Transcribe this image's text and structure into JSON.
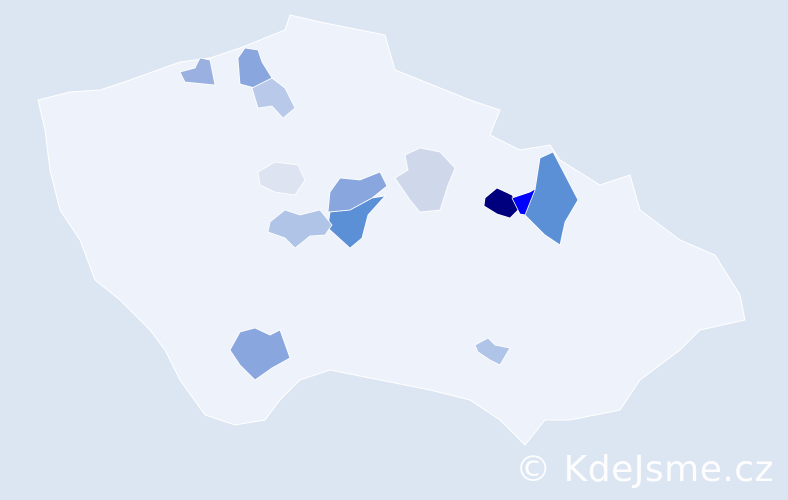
{
  "map": {
    "country_fill": "#eef2fa",
    "border_color": "#ffffff",
    "background": "#dce5f2",
    "highlighted_districts": [
      {
        "level": "highest",
        "color": "#00007f"
      },
      {
        "level": "very-high",
        "color": "#0000ff"
      },
      {
        "level": "high",
        "color": "#5b8fd6"
      },
      {
        "level": "high",
        "color": "#5b8fd6"
      },
      {
        "level": "medium",
        "color": "#8aa6de"
      },
      {
        "level": "medium",
        "color": "#8aa6de"
      },
      {
        "level": "medium",
        "color": "#8aa6de"
      },
      {
        "level": "medium",
        "color": "#9ab0e0"
      },
      {
        "level": "low",
        "color": "#b0c4e8"
      },
      {
        "level": "low",
        "color": "#b8c9ea"
      },
      {
        "level": "low",
        "color": "#b0c4e8"
      },
      {
        "level": "very-low",
        "color": "#cfd7ea"
      },
      {
        "level": "very-low",
        "color": "#dde3f0"
      }
    ]
  },
  "watermark": "© KdeJsme.cz"
}
